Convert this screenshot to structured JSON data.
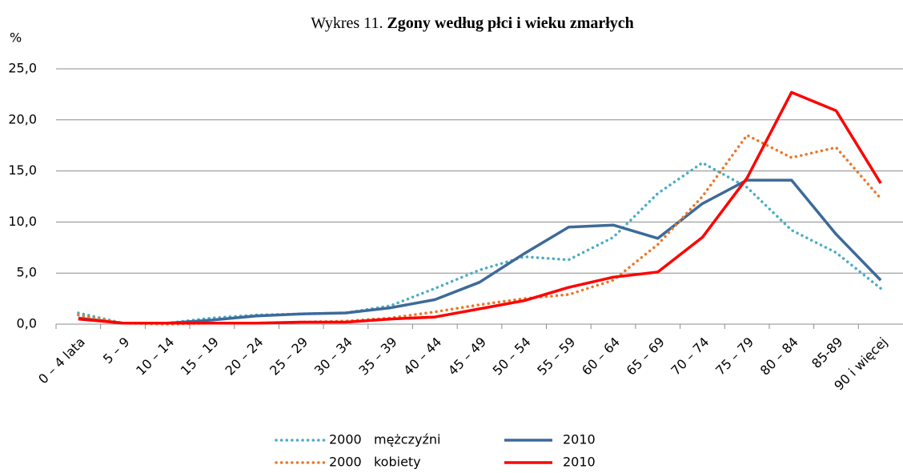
{
  "chart_data": {
    "type": "line",
    "title": [
      "Wykres 11.",
      "Zgony według płci i wieku zmarłych"
    ],
    "y_label": "%",
    "categories": [
      "0 – 4 lata",
      "5 – 9",
      "10 – 14",
      "15 – 19",
      "20 – 24",
      "25 – 29",
      "30 – 34",
      "35 – 39",
      "40 – 44",
      "45 – 49",
      "50 – 54",
      "55 – 59",
      "60 – 64",
      "65 – 69",
      "70 – 74",
      "75 – 79",
      "80 – 84",
      "85-89",
      "90 i więcej"
    ],
    "series": [
      {
        "name": "2000   mężczyźni",
        "color": "#4bacc6",
        "style": "dotted",
        "values": [
          1.1,
          0.1,
          0.1,
          0.6,
          0.9,
          1.0,
          1.1,
          1.8,
          3.5,
          5.3,
          6.6,
          6.3,
          8.5,
          12.8,
          15.8,
          13.4,
          9.2,
          7.0,
          3.5
        ]
      },
      {
        "name": "2010",
        "color": "#3d6a99",
        "style": "solid",
        "values": [
          0.6,
          0.1,
          0.1,
          0.4,
          0.8,
          1.0,
          1.1,
          1.6,
          2.4,
          4.1,
          6.9,
          9.5,
          9.7,
          8.4,
          11.8,
          14.1,
          14.1,
          8.8,
          4.3
        ]
      },
      {
        "name": "2000   kobiety",
        "color": "#e8782a",
        "style": "dotted",
        "values": [
          0.9,
          0.1,
          0.0,
          0.1,
          0.1,
          0.2,
          0.3,
          0.6,
          1.2,
          1.9,
          2.5,
          2.9,
          4.3,
          7.8,
          12.5,
          18.5,
          16.3,
          17.3,
          12.3
        ]
      },
      {
        "name": "2010",
        "color": "#ff0000",
        "style": "solid",
        "values": [
          0.5,
          0.1,
          0.1,
          0.1,
          0.1,
          0.2,
          0.2,
          0.5,
          0.7,
          1.5,
          2.3,
          3.6,
          4.6,
          5.1,
          8.5,
          14.3,
          22.7,
          20.9,
          13.8
        ]
      }
    ],
    "ylim": [
      0,
      25
    ],
    "yticks": [
      {
        "value": 0,
        "label": "0,0"
      },
      {
        "value": 5,
        "label": "5,0"
      },
      {
        "value": 10,
        "label": "10,0"
      },
      {
        "value": 15,
        "label": "15,0"
      },
      {
        "value": 20,
        "label": "20,0"
      },
      {
        "value": 25,
        "label": "25,0"
      }
    ],
    "grid": true
  }
}
